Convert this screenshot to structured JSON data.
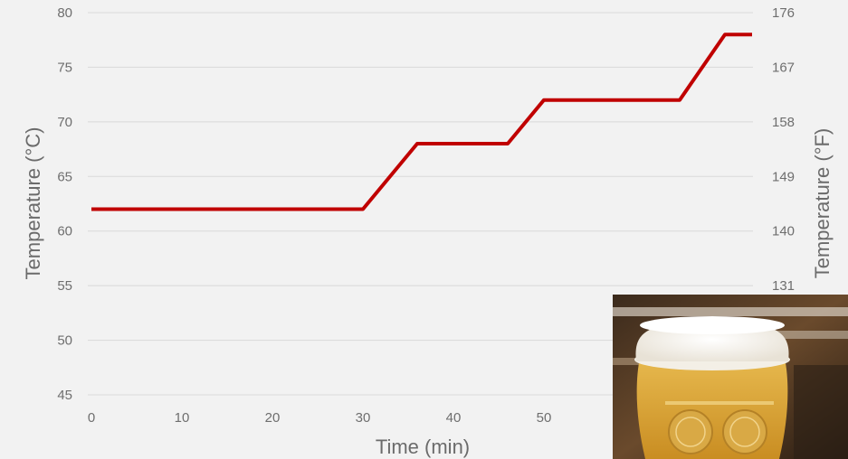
{
  "chart_data": {
    "type": "line",
    "xlabel": "Time (min)",
    "ylabel": "Temperature (°C)",
    "y2label": "Temperature (°F)",
    "xlim": [
      0,
      70
    ],
    "ylim": [
      45,
      80
    ],
    "x_ticks": [
      "0",
      "10",
      "20",
      "30",
      "40",
      "50"
    ],
    "y_ticks": [
      "45",
      "50",
      "55",
      "60",
      "65",
      "70",
      "75",
      "80"
    ],
    "y2_ticks": [
      "131",
      "140",
      "149",
      "158",
      "167",
      "176"
    ],
    "grid": true,
    "series": [
      {
        "color": "#c00000",
        "x": [
          0,
          30,
          36,
          46,
          50,
          65,
          70,
          73
        ],
        "y": [
          62,
          62,
          68,
          68,
          72,
          72,
          78,
          78
        ]
      }
    ]
  },
  "photo": {
    "subject": "beer-glass-photo"
  }
}
